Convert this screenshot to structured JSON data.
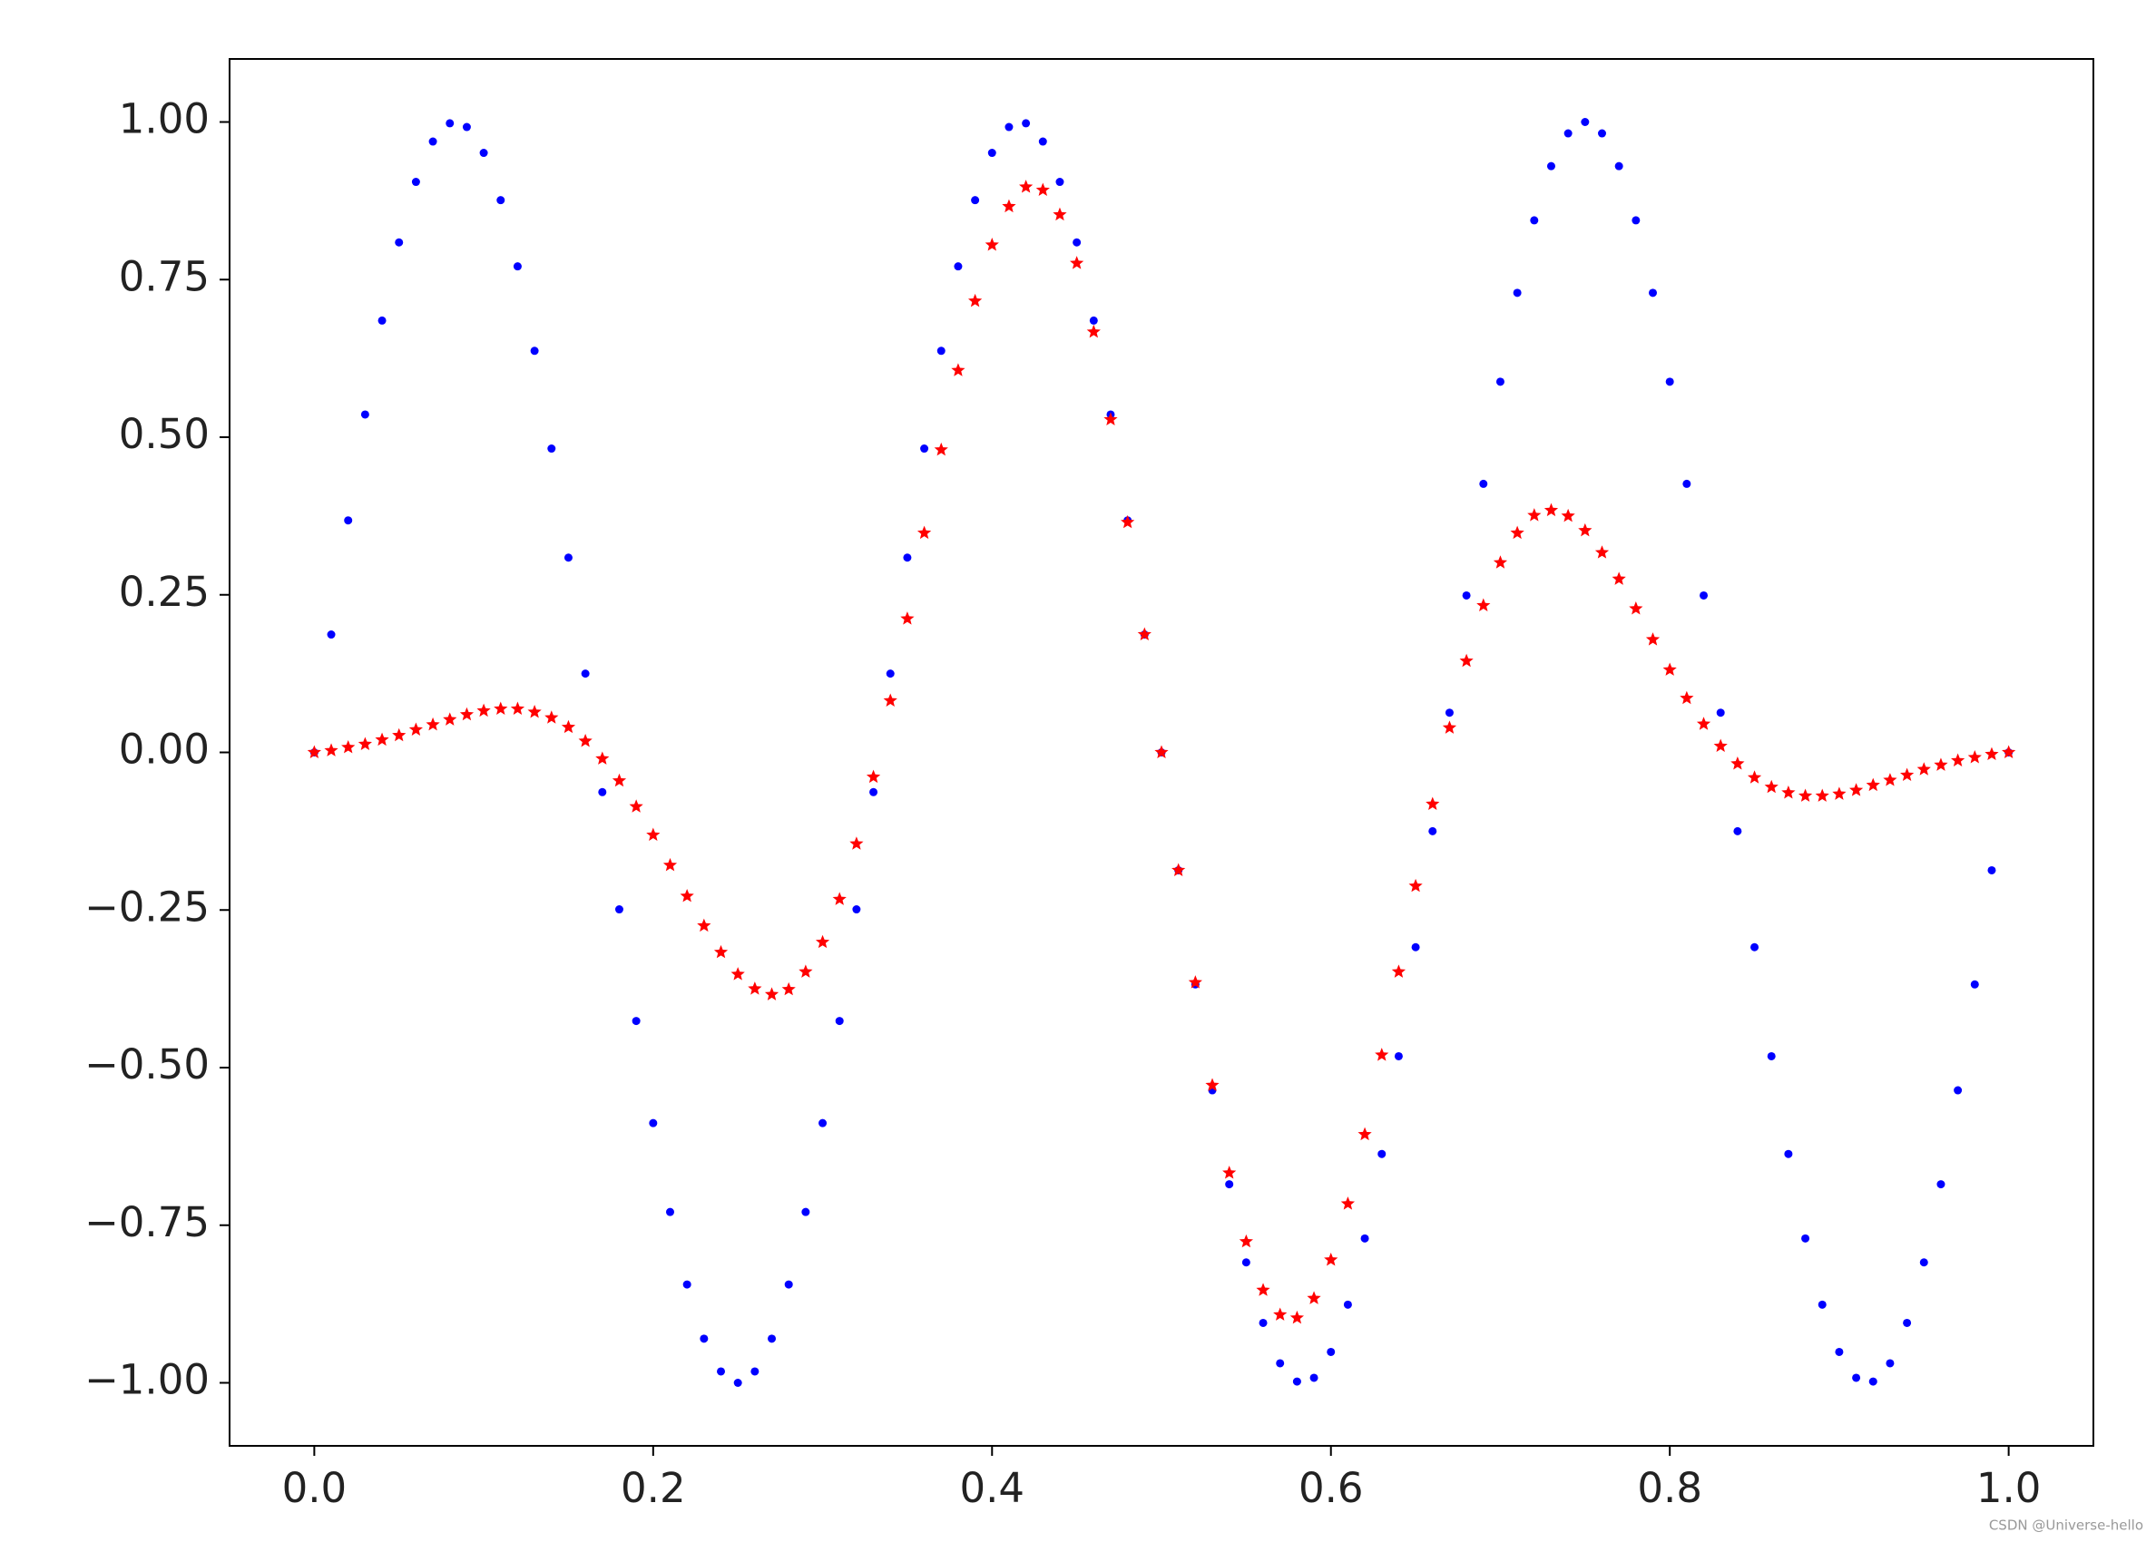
{
  "chart_data": {
    "type": "scatter",
    "x": [
      0,
      0.01,
      0.02,
      0.03,
      0.04,
      0.05,
      0.06,
      0.07,
      0.08,
      0.09,
      0.1,
      0.11,
      0.12,
      0.13,
      0.14,
      0.15,
      0.16,
      0.17,
      0.18,
      0.19,
      0.2,
      0.21,
      0.22,
      0.23,
      0.24,
      0.25,
      0.26,
      0.27,
      0.28,
      0.29,
      0.3,
      0.31,
      0.32,
      0.33,
      0.34,
      0.35,
      0.36,
      0.37,
      0.38,
      0.39,
      0.4,
      0.41,
      0.42,
      0.43,
      0.44,
      0.45,
      0.46,
      0.47,
      0.48,
      0.49,
      0.5,
      0.51,
      0.52,
      0.53,
      0.54,
      0.55,
      0.56,
      0.57,
      0.58,
      0.59,
      0.6,
      0.61,
      0.62,
      0.63,
      0.64,
      0.65,
      0.66,
      0.67,
      0.68,
      0.69,
      0.7,
      0.71,
      0.72,
      0.73,
      0.74,
      0.75,
      0.76,
      0.77,
      0.78,
      0.79,
      0.8,
      0.81,
      0.82,
      0.83,
      0.84,
      0.85,
      0.86,
      0.87,
      0.88,
      0.89,
      0.9,
      0.91,
      0.92,
      0.93,
      0.94,
      0.95,
      0.96,
      0.97,
      0.98,
      0.99,
      1
    ],
    "series": [
      {
        "color": "#0000ff",
        "marker": "dot",
        "values": [
          0,
          0.187,
          0.368,
          0.536,
          0.685,
          0.809,
          0.905,
          0.969,
          0.998,
          0.992,
          0.951,
          0.876,
          0.771,
          0.637,
          0.482,
          0.309,
          0.125,
          -0.063,
          -0.249,
          -0.426,
          -0.588,
          -0.729,
          -0.844,
          -0.93,
          -0.982,
          -1,
          -0.982,
          -0.93,
          -0.844,
          -0.729,
          -0.588,
          -0.426,
          -0.249,
          -0.063,
          0.125,
          0.309,
          0.482,
          0.637,
          0.771,
          0.876,
          0.951,
          0.992,
          0.998,
          0.969,
          0.905,
          0.809,
          0.685,
          0.536,
          0.368,
          0.187,
          0,
          -0.187,
          -0.368,
          -0.536,
          -0.685,
          -0.809,
          -0.905,
          -0.969,
          -0.998,
          -0.992,
          -0.951,
          -0.876,
          -0.771,
          -0.637,
          -0.482,
          -0.309,
          -0.125,
          0.063,
          0.249,
          0.426,
          0.588,
          0.729,
          0.844,
          0.93,
          0.982,
          1,
          0.982,
          0.93,
          0.844,
          0.729,
          0.588,
          0.426,
          0.249,
          0.063,
          -0.125,
          -0.309,
          -0.482,
          -0.637,
          -0.771,
          -0.876,
          -0.951,
          -0.992,
          -0.998,
          -0.969,
          -0.905,
          -0.809,
          -0.685,
          -0.536,
          -0.368,
          -0.187,
          0
        ]
      },
      {
        "color": "#ff0000",
        "marker": "star",
        "values": [
          0,
          0.003,
          0.008,
          0.013,
          0.02,
          0.027,
          0.036,
          0.044,
          0.052,
          0.06,
          0.066,
          0.069,
          0.069,
          0.064,
          0.055,
          0.04,
          0.018,
          -0.01,
          -0.045,
          -0.086,
          -0.131,
          -0.179,
          -0.228,
          -0.275,
          -0.317,
          -0.352,
          -0.375,
          -0.384,
          -0.376,
          -0.348,
          -0.301,
          -0.233,
          -0.145,
          -0.039,
          0.082,
          0.212,
          0.348,
          0.48,
          0.606,
          0.716,
          0.805,
          0.866,
          0.897,
          0.892,
          0.853,
          0.776,
          0.667,
          0.528,
          0.365,
          0.187,
          0,
          -0.187,
          -0.365,
          -0.528,
          -0.667,
          -0.776,
          -0.853,
          -0.892,
          -0.897,
          -0.866,
          -0.805,
          -0.716,
          -0.606,
          -0.48,
          -0.348,
          -0.212,
          -0.082,
          0.039,
          0.145,
          0.233,
          0.301,
          0.348,
          0.376,
          0.384,
          0.375,
          0.352,
          0.317,
          0.275,
          0.228,
          0.179,
          0.131,
          0.086,
          0.045,
          0.01,
          -0.018,
          -0.04,
          -0.055,
          -0.064,
          -0.069,
          -0.069,
          -0.066,
          -0.06,
          -0.052,
          -0.044,
          -0.036,
          -0.027,
          -0.02,
          -0.013,
          -0.008,
          -0.003,
          0
        ]
      }
    ],
    "xlim": [
      -0.05,
      1.05
    ],
    "ylim": [
      -1.1,
      1.1
    ],
    "xticks": [
      {
        "value": 0,
        "label": "0.0"
      },
      0.2,
      0.4,
      0.6,
      0.8,
      {
        "value": 1,
        "label": "1.0"
      }
    ],
    "yticks": [
      {
        "value": -1,
        "label": "−1.00"
      },
      {
        "value": -0.75,
        "label": "−0.75"
      },
      {
        "value": -0.5,
        "label": "−0.50"
      },
      {
        "value": -0.25,
        "label": "−0.25"
      },
      {
        "value": 0,
        "label": "0.00"
      },
      {
        "value": 0.25,
        "label": "0.25"
      },
      {
        "value": 0.5,
        "label": "0.50"
      },
      {
        "value": 0.75,
        "label": "0.75"
      },
      {
        "value": 1,
        "label": "1.00"
      }
    ],
    "grid": false,
    "watermark": "CSDN @Universe-hello"
  }
}
